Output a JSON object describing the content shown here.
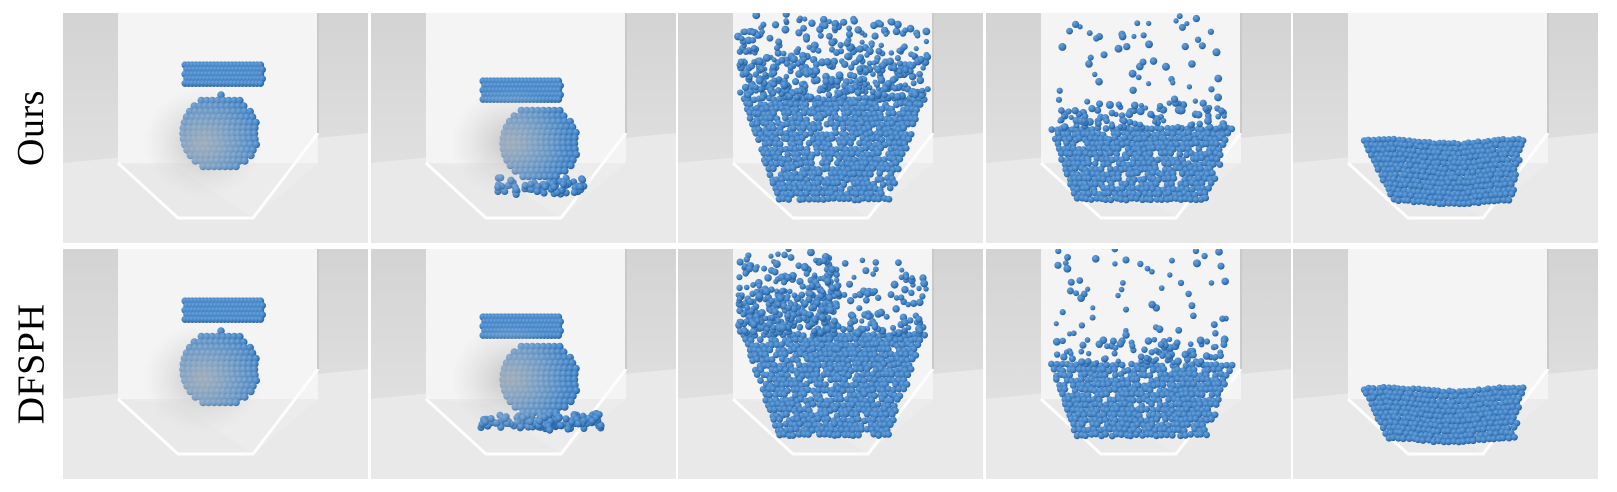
{
  "rows": [
    {
      "label": "Ours"
    },
    {
      "label": "DFSPH"
    }
  ],
  "colors": {
    "particle": "#3a7bbf",
    "particle_dark": "#245a94",
    "particle_light": "#6aa3db",
    "floor": "#ececec",
    "wall": "#f4f4f4",
    "background": "#d9d9d9"
  },
  "frames": [
    {
      "stage": "drop",
      "ring_height": 0.0,
      "sphere_fill": 1.0
    },
    {
      "stage": "impact",
      "ring_height": 0.0,
      "sphere_fill": 0.75
    },
    {
      "stage": "splash",
      "splash": 1.0
    },
    {
      "stage": "settling",
      "splash": 0.45
    },
    {
      "stage": "rest",
      "splash": 0.0
    }
  ]
}
